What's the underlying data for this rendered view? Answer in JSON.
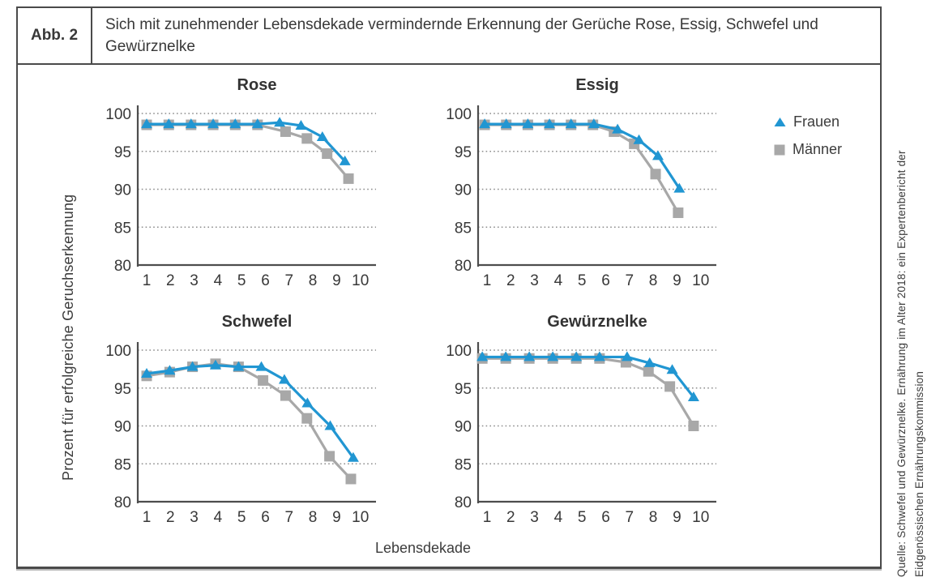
{
  "figure": {
    "label": "Abb. 2",
    "caption": "Sich mit zunehmender Lebensdekade vermindernde Erkennung der Gerüche Rose, Essig, Schwefel und Gewürznelke"
  },
  "axes": {
    "ylabel": "Prozent für erfolgreiche Geruchserkennung",
    "xlabel": "Lebensdekade",
    "ylim": [
      80,
      100
    ],
    "yticks": [
      100,
      95,
      90,
      85,
      80
    ],
    "xticks": [
      1,
      2,
      3,
      4,
      5,
      6,
      7,
      8,
      9,
      10
    ],
    "grid": "dotted horizontal"
  },
  "legend": {
    "position": "right of Essig chart",
    "items": [
      {
        "label": "Frauen",
        "marker": "triangle",
        "color": "#2196d2"
      },
      {
        "label": "Männer",
        "marker": "square",
        "color": "#a8a8a8"
      }
    ]
  },
  "colors": {
    "frauen": "#2196d2",
    "maenner": "#a8a8a8",
    "axis": "#4d4d4d",
    "grid": "#8c8c8c",
    "text": "#383838"
  },
  "source": {
    "line1": "Quelle: Schwefel und Gewürznelke. Ernährung im Alter 2018: ein Expertenbericht der",
    "line2": "Eidgenössischen Ernährungskommission"
  },
  "chart_data": [
    {
      "type": "line",
      "title": "Rose",
      "xlabel": "Lebensdekade",
      "ylabel": "Prozent für erfolgreiche Geruchserkennung",
      "ylim": [
        80,
        100
      ],
      "series": [
        {
          "name": "Frauen",
          "marker": "triangle",
          "x": [
            1,
            1.93,
            2.87,
            3.8,
            4.73,
            5.67,
            6.6,
            7.5,
            8.4,
            9.35
          ],
          "y": [
            98.6,
            98.6,
            98.6,
            98.6,
            98.6,
            98.6,
            98.8,
            98.4,
            96.9,
            93.7
          ]
        },
        {
          "name": "Männer",
          "marker": "square",
          "x": [
            1,
            1.93,
            2.87,
            3.8,
            4.73,
            5.67,
            6.85,
            7.75,
            8.6,
            9.5
          ],
          "y": [
            98.5,
            98.5,
            98.5,
            98.5,
            98.5,
            98.5,
            97.6,
            96.7,
            94.7,
            91.4
          ]
        }
      ]
    },
    {
      "type": "line",
      "title": "Essig",
      "xlabel": "Lebensdekade",
      "ylabel": "Prozent für erfolgreiche Geruchserkennung",
      "ylim": [
        80,
        100
      ],
      "series": [
        {
          "name": "Frauen",
          "marker": "triangle",
          "x": [
            0.9,
            1.81,
            2.72,
            3.63,
            4.54,
            5.5,
            6.5,
            7.4,
            8.2,
            9.1
          ],
          "y": [
            98.6,
            98.6,
            98.6,
            98.6,
            98.6,
            98.6,
            97.9,
            96.5,
            94.4,
            90.1
          ]
        },
        {
          "name": "Männer",
          "marker": "square",
          "x": [
            0.9,
            1.81,
            2.72,
            3.63,
            4.54,
            5.46,
            6.35,
            7.2,
            8.1,
            9.05
          ],
          "y": [
            98.5,
            98.5,
            98.5,
            98.5,
            98.5,
            98.5,
            97.6,
            96.0,
            92.0,
            86.9
          ]
        }
      ]
    },
    {
      "type": "line",
      "title": "Schwefel",
      "xlabel": "Lebensdekade",
      "ylabel": "Prozent für erfolgreiche Geruchserkennung",
      "ylim": [
        80,
        100
      ],
      "series": [
        {
          "name": "Frauen",
          "marker": "triangle",
          "x": [
            1,
            1.97,
            2.93,
            3.9,
            4.87,
            5.83,
            6.8,
            7.77,
            8.73,
            9.7
          ],
          "y": [
            96.9,
            97.3,
            97.8,
            98.0,
            97.8,
            97.8,
            96.1,
            93.0,
            90.0,
            85.8
          ]
        },
        {
          "name": "Männer",
          "marker": "square",
          "x": [
            1,
            1.97,
            2.93,
            3.9,
            4.87,
            5.9,
            6.85,
            7.75,
            8.7,
            9.6
          ],
          "y": [
            96.6,
            97.1,
            97.8,
            98.2,
            97.8,
            96.0,
            94.0,
            91.0,
            86.0,
            83.0
          ]
        }
      ]
    },
    {
      "type": "line",
      "title": "Gewürznelke",
      "xlabel": "Lebensdekade",
      "ylabel": "Prozent für erfolgreiche Geruchserkennung",
      "ylim": [
        80,
        100
      ],
      "series": [
        {
          "name": "Frauen",
          "marker": "triangle",
          "x": [
            0.8,
            1.79,
            2.78,
            3.77,
            4.76,
            5.74,
            6.9,
            7.85,
            8.8,
            9.7
          ],
          "y": [
            99.1,
            99.1,
            99.1,
            99.1,
            99.1,
            99.1,
            99.1,
            98.3,
            97.4,
            93.8
          ]
        },
        {
          "name": "Männer",
          "marker": "square",
          "x": [
            0.8,
            1.79,
            2.78,
            3.77,
            4.76,
            5.74,
            6.85,
            7.8,
            8.7,
            9.7
          ],
          "y": [
            98.9,
            98.9,
            98.9,
            98.9,
            98.9,
            98.9,
            98.4,
            97.2,
            95.2,
            90.0
          ]
        }
      ]
    }
  ]
}
